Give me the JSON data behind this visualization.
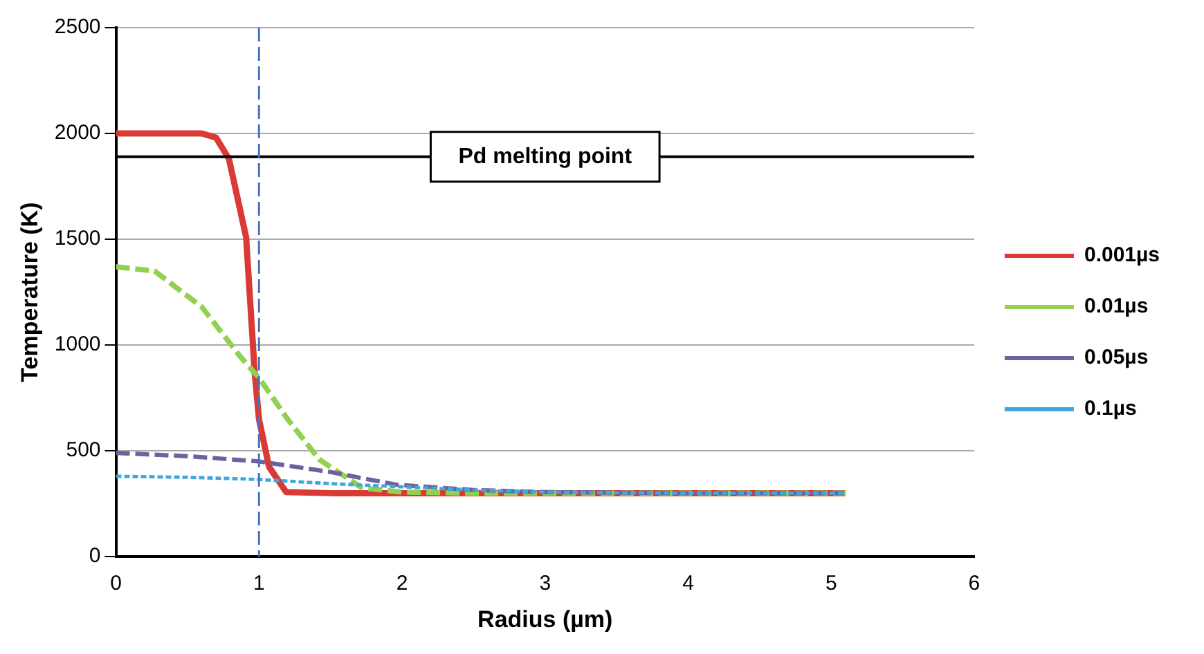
{
  "chart_data": {
    "type": "line",
    "xlabel": "Radius (µm)",
    "ylabel": "Temperature (K)",
    "xlim": [
      0,
      6
    ],
    "xticks": [
      0,
      1,
      2,
      3,
      4,
      5,
      6
    ],
    "ylim": [
      0,
      2500
    ],
    "yticks": [
      0,
      500,
      1000,
      1500,
      2000,
      2500
    ],
    "grid": "y",
    "legend": "right",
    "marker": "none",
    "series": [
      {
        "name": "0.001µs",
        "color": "#d93a35",
        "line_style": "solid",
        "x": [
          0,
          0.3,
          0.6,
          0.7,
          0.79,
          0.91,
          0.97,
          1.0,
          1.07,
          1.19,
          1.5,
          2,
          3,
          4,
          5.1
        ],
        "values": [
          2000,
          2000,
          2000,
          1980,
          1880,
          1510,
          870,
          650,
          425,
          305,
          300,
          300,
          300,
          300,
          300
        ]
      },
      {
        "name": "0.01µs",
        "color": "#92d050",
        "line_style": "dashed",
        "x": [
          0,
          0.27,
          0.6,
          0.87,
          1.0,
          1.2,
          1.42,
          1.72,
          2,
          2.5,
          3,
          4,
          5.1
        ],
        "values": [
          1370,
          1350,
          1180,
          945,
          845,
          650,
          460,
          325,
          305,
          300,
          300,
          300,
          300
        ]
      },
      {
        "name": "0.05µs",
        "color": "#7060a0",
        "line_style": "dashed",
        "x": [
          0,
          0.5,
          1.0,
          1.5,
          1.96,
          2.5,
          3,
          4,
          5.1
        ],
        "values": [
          490,
          475,
          450,
          400,
          340,
          315,
          305,
          300,
          300
        ]
      },
      {
        "name": "0.1µs",
        "color": "#3fa7dc",
        "line_style": "dotted",
        "x": [
          0,
          0.5,
          1.0,
          1.5,
          2,
          2.5,
          3,
          4,
          5.1
        ],
        "values": [
          380,
          375,
          365,
          345,
          330,
          315,
          305,
          300,
          300
        ]
      }
    ],
    "ref_lines": [
      {
        "axis": "y",
        "value": 1890,
        "label": "Pd melting point",
        "color": "#000000",
        "line_style": "solid"
      },
      {
        "axis": "x",
        "value": 1,
        "color": "#4472c4",
        "line_style": "dashed"
      }
    ]
  }
}
